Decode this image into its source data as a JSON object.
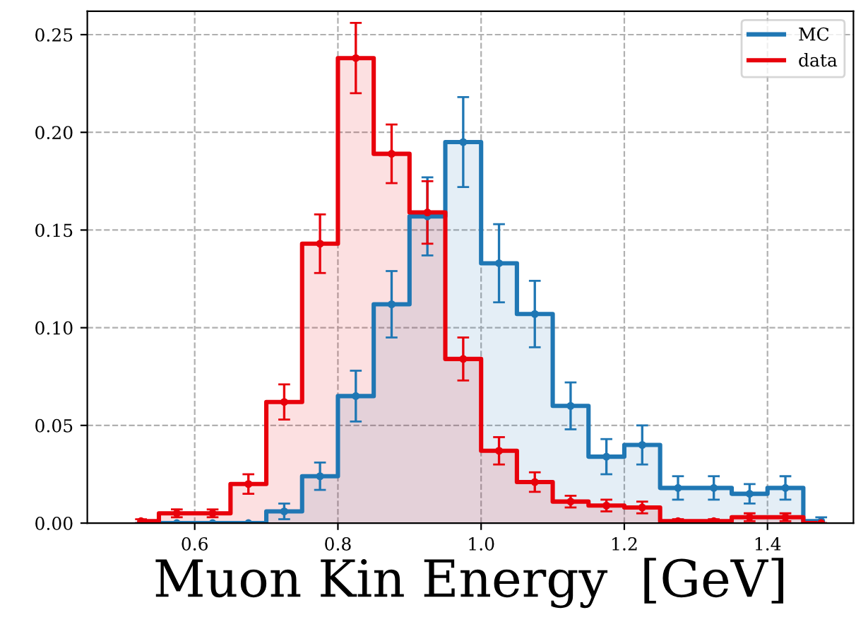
{
  "chart_data": {
    "type": "step",
    "xlabel": "Muon Kin Energy  [GeV]",
    "x": [
      0.525,
      0.575,
      0.625,
      0.675,
      0.725,
      0.775,
      0.825,
      0.875,
      0.925,
      0.975,
      1.025,
      1.075,
      1.125,
      1.175,
      1.225,
      1.275,
      1.325,
      1.375,
      1.425,
      1.475
    ],
    "series": [
      {
        "name": "MC",
        "color": "#1f77b4",
        "values": [
          0,
          0,
          0,
          0,
          0.006,
          0.024,
          0.065,
          0.112,
          0.157,
          0.195,
          0.133,
          0.107,
          0.06,
          0.034,
          0.04,
          0.018,
          0.018,
          0.015,
          0.018,
          0.001
        ],
        "errors": [
          null,
          null,
          null,
          null,
          0.004,
          0.007,
          0.013,
          0.017,
          0.02,
          0.023,
          0.02,
          0.017,
          0.012,
          0.009,
          0.01,
          0.006,
          0.006,
          0.005,
          0.006,
          0.002
        ]
      },
      {
        "name": "data",
        "color": "#e8000b",
        "values": [
          0.001,
          0.005,
          0.005,
          0.02,
          0.062,
          0.143,
          0.238,
          0.189,
          0.159,
          0.084,
          0.037,
          0.021,
          0.011,
          0.009,
          0.008,
          0.001,
          0.001,
          0.003,
          0.003,
          0
        ],
        "errors": [
          0.001,
          0.002,
          0.002,
          0.005,
          0.009,
          0.015,
          0.018,
          0.015,
          0.016,
          0.011,
          0.007,
          0.005,
          0.003,
          0.003,
          0.003,
          0.001,
          0.001,
          0.002,
          0.002,
          null
        ]
      }
    ],
    "xlim": [
      0.45,
      1.52
    ],
    "ylim": [
      0,
      0.262
    ],
    "xticks": [
      {
        "value": 0.6,
        "label": "0.6"
      },
      {
        "value": 0.8,
        "label": "0.8"
      },
      {
        "value": 1.0,
        "label": "1.0"
      },
      {
        "value": 1.2,
        "label": "1.2"
      },
      {
        "value": 1.4,
        "label": "1.4"
      }
    ],
    "yticks": [
      {
        "value": 0,
        "label": "0.00"
      },
      {
        "value": 0.05,
        "label": "0.05"
      },
      {
        "value": 0.1,
        "label": "0.10"
      },
      {
        "value": 0.15,
        "label": "0.15"
      },
      {
        "value": 0.2,
        "label": "0.20"
      },
      {
        "value": 0.25,
        "label": "0.25"
      }
    ],
    "marker": "circle",
    "grid": true,
    "legend": "top right",
    "line_style": "solid"
  }
}
